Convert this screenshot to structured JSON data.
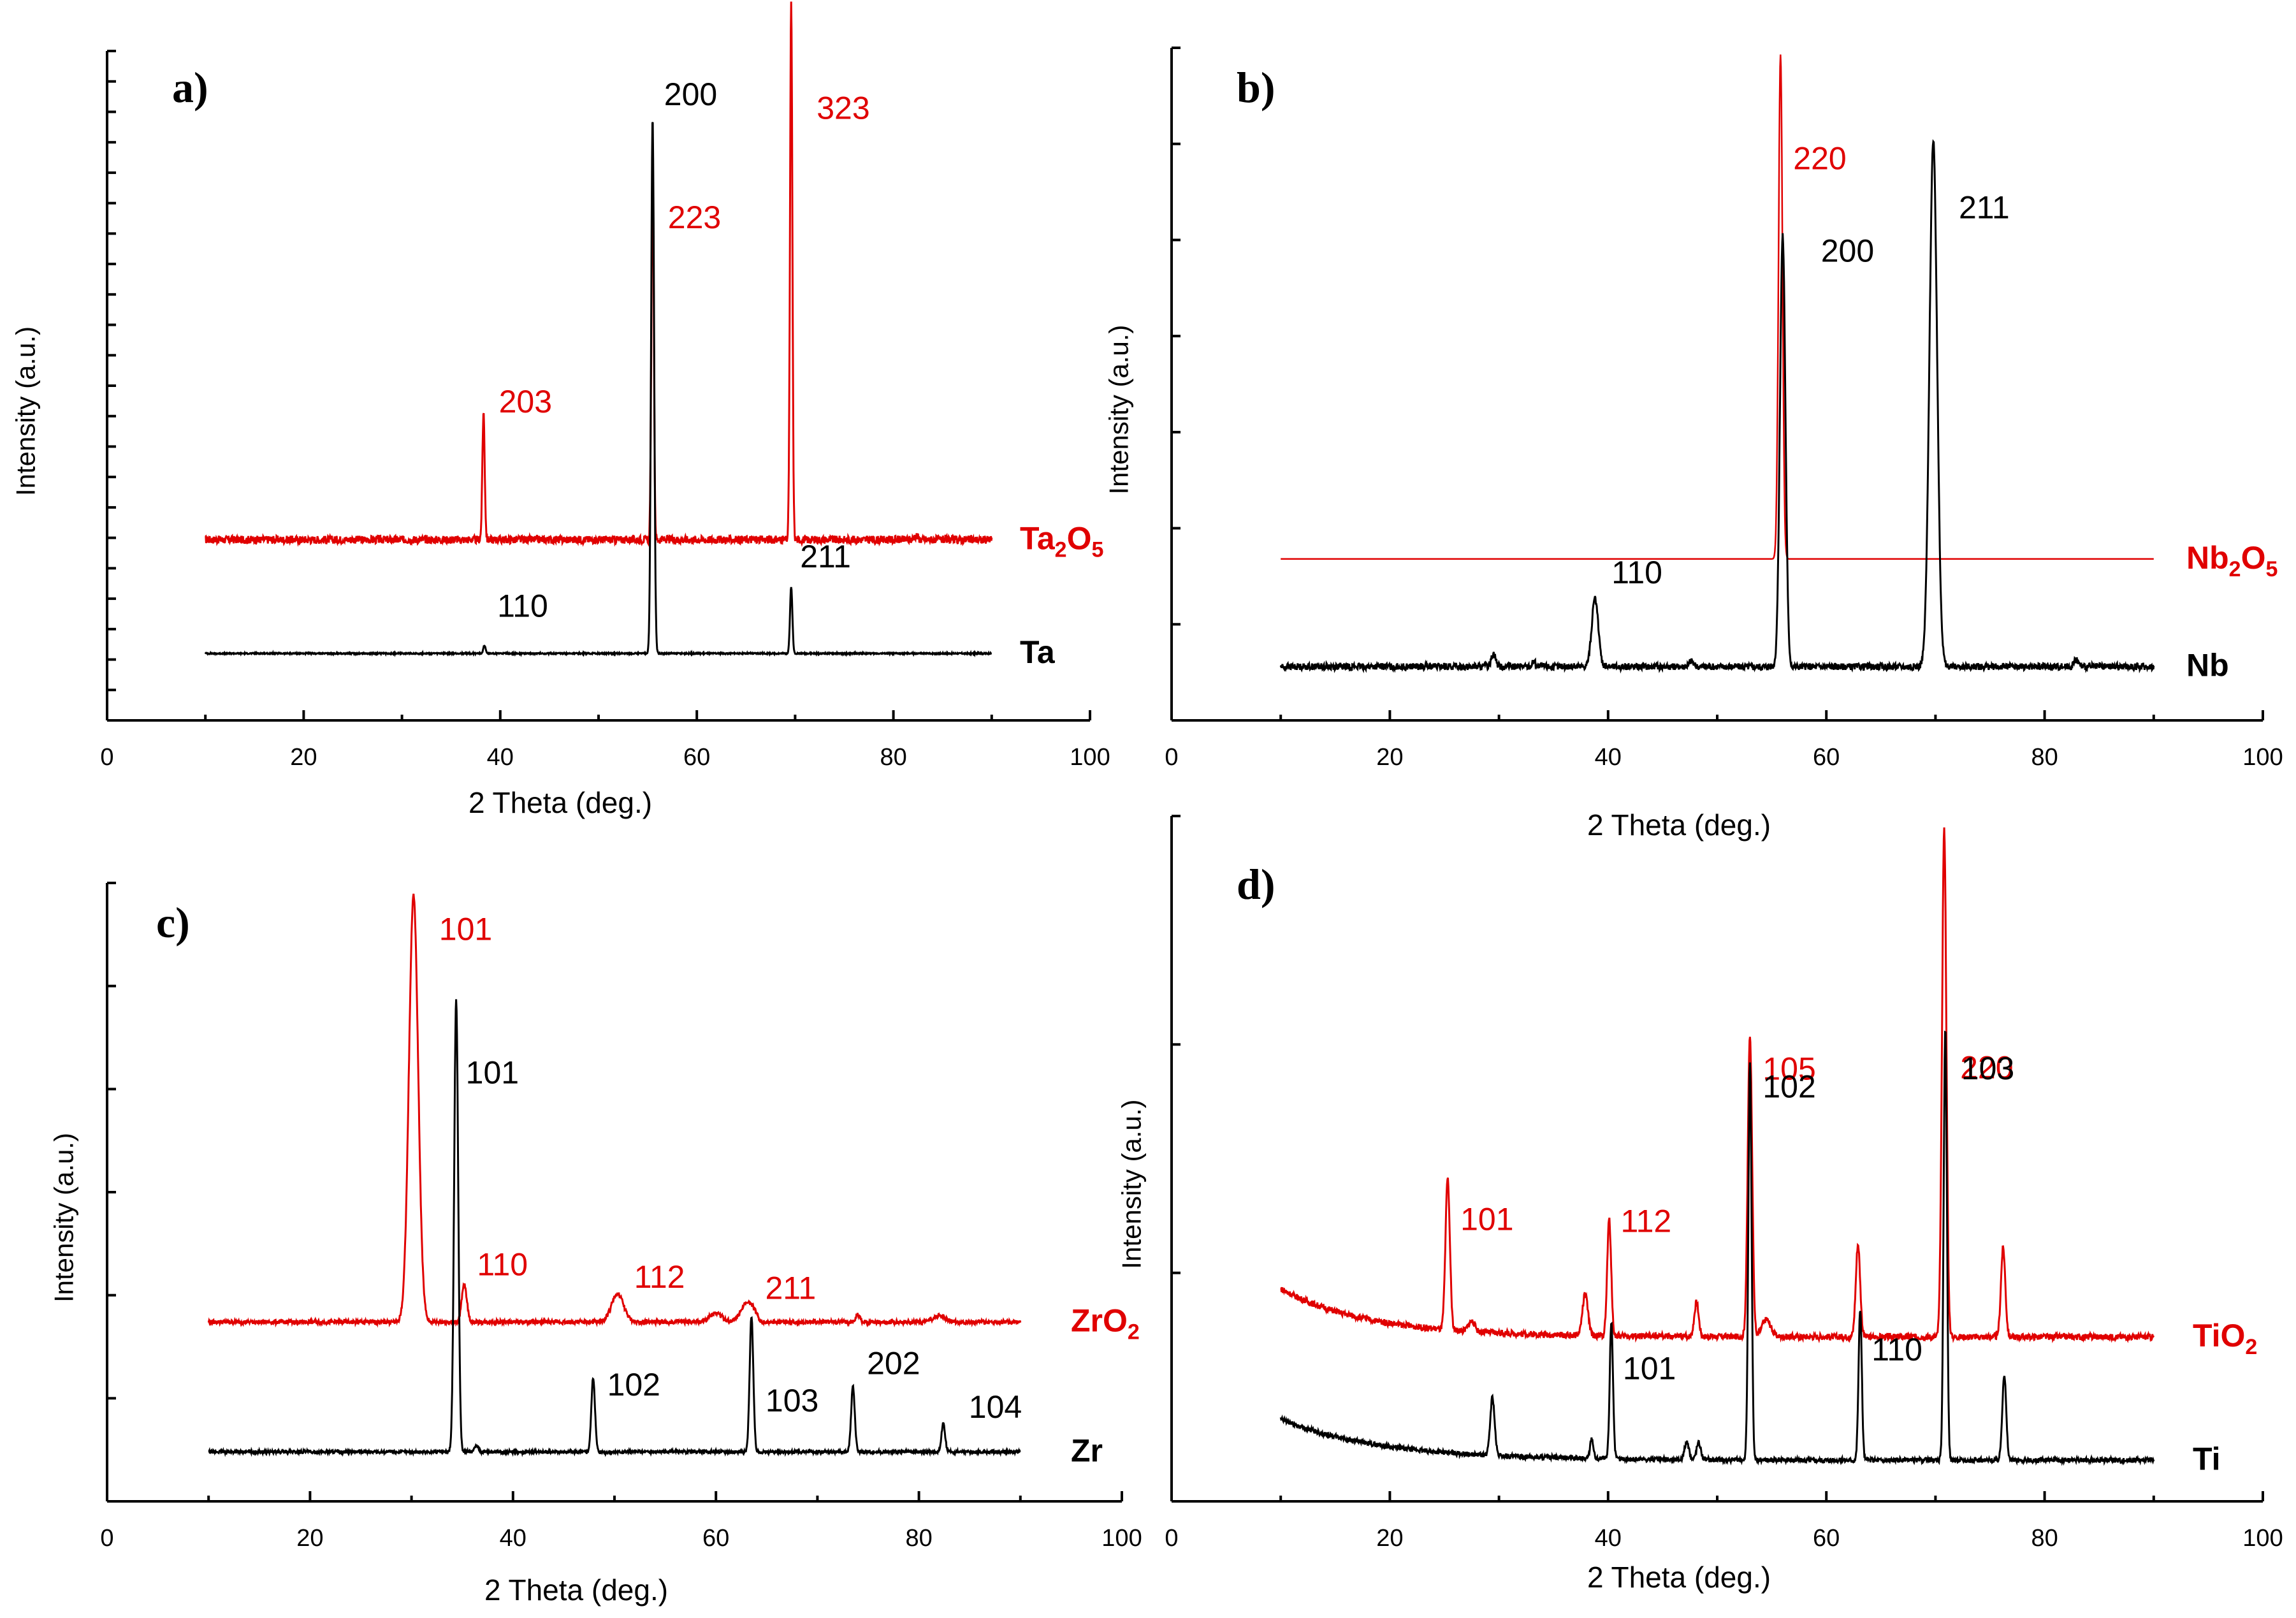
{
  "chart_data": [
    {
      "type": "line",
      "panel": "a",
      "panel_label": "a)",
      "xlabel": "2 Theta (deg.)",
      "ylabel": "Intensity (a.u.)",
      "xlim": [
        0,
        100
      ],
      "xticks": [
        0,
        20,
        40,
        60,
        80,
        100
      ],
      "ylim": [
        0,
        100
      ],
      "series": [
        {
          "name": "Ta2O5",
          "label_main": "Ta",
          "label_sub": "2",
          "label_main2": "O",
          "label_sub2": "5",
          "color": "#e00000",
          "baseline": 27,
          "noise": 0.6,
          "peaks": [
            {
              "x": 38.3,
              "h": 19,
              "w": 0.12
            },
            {
              "x": 55.5,
              "h": 57,
              "w": 0.12
            },
            {
              "x": 69.6,
              "h": 80,
              "w": 0.12
            },
            {
              "x": 82.3,
              "h": 0.6,
              "w": 0.2
            }
          ],
          "peak_labels": [
            {
              "text": "203",
              "x": 38.3
            },
            {
              "text": "223",
              "x": 55.5
            },
            {
              "text": "323",
              "x": 69.6
            }
          ]
        },
        {
          "name": "Ta",
          "label_main": "Ta",
          "color": "#000000",
          "baseline": 10,
          "noise": 0.1,
          "peaks": [
            {
              "x": 38.4,
              "h": 1.2,
              "w": 0.12
            },
            {
              "x": 55.5,
              "h": 80,
              "w": 0.15
            },
            {
              "x": 69.6,
              "h": 10,
              "w": 0.12
            }
          ],
          "peak_labels": [
            {
              "text": "110",
              "x": 38.4
            },
            {
              "text": "200",
              "x": 55.5
            },
            {
              "text": "211",
              "x": 69.6
            }
          ]
        }
      ]
    },
    {
      "type": "line",
      "panel": "b",
      "panel_label": "b)",
      "xlabel": "2 Theta (deg.)",
      "ylabel": "Intensity (a.u.)",
      "xlim": [
        0,
        100
      ],
      "xticks": [
        0,
        20,
        40,
        60,
        80,
        100
      ],
      "ylim": [
        0,
        100
      ],
      "series": [
        {
          "name": "Nb2O5",
          "label_main": "Nb",
          "label_sub": "2",
          "label_main2": "O",
          "label_sub2": "5",
          "color": "#e00000",
          "baseline": 24,
          "noise": 0,
          "peaks": [
            {
              "x": 55.8,
              "h": 75,
              "w": 0.18
            }
          ],
          "peak_labels": [
            {
              "text": "220",
              "x": 55.8
            }
          ]
        },
        {
          "name": "Nb",
          "label_main": "Nb",
          "color": "#000000",
          "baseline": 8,
          "noise": 0.5,
          "peaks": [
            {
              "x": 29.5,
              "h": 2,
              "w": 0.2
            },
            {
              "x": 33.2,
              "h": 0.8,
              "w": 0.15
            },
            {
              "x": 38.8,
              "h": 10,
              "w": 0.3
            },
            {
              "x": 47.6,
              "h": 0.8,
              "w": 0.2
            },
            {
              "x": 56.0,
              "h": 64,
              "w": 0.25
            },
            {
              "x": 69.8,
              "h": 78,
              "w": 0.35
            },
            {
              "x": 82.9,
              "h": 1,
              "w": 0.2
            }
          ],
          "peak_labels": [
            {
              "text": "110",
              "x": 38.8
            },
            {
              "text": "200",
              "x": 56.0
            },
            {
              "text": "211",
              "x": 69.8
            }
          ]
        }
      ]
    },
    {
      "type": "line",
      "panel": "c",
      "panel_label": "c)",
      "xlabel": "2 Theta (deg.)",
      "ylabel": "Intensity (a.u.)",
      "xlim": [
        0,
        100
      ],
      "xticks": [
        0,
        20,
        40,
        60,
        80,
        100
      ],
      "ylim": [
        0,
        100
      ],
      "series": [
        {
          "name": "ZrO2",
          "label_main": "ZrO",
          "label_sub": "2",
          "color": "#e00000",
          "baseline": 29,
          "noise": 0.35,
          "peaks": [
            {
              "x": 30.2,
              "h": 69,
              "w": 0.45
            },
            {
              "x": 35.2,
              "h": 6,
              "w": 0.25
            },
            {
              "x": 50.3,
              "h": 4.5,
              "w": 0.6
            },
            {
              "x": 60.0,
              "h": 1.5,
              "w": 0.6
            },
            {
              "x": 62.8,
              "h": 2.5,
              "w": 0.5
            },
            {
              "x": 63.6,
              "h": 2.0,
              "w": 0.4
            },
            {
              "x": 74.0,
              "h": 1.2,
              "w": 0.2
            },
            {
              "x": 82.0,
              "h": 1.0,
              "w": 0.6
            }
          ],
          "peak_labels": [
            {
              "text": "101",
              "x": 30.2
            },
            {
              "text": "110",
              "x": 35.2
            },
            {
              "text": "112",
              "x": 50.3
            },
            {
              "text": "211",
              "x": 63.6
            }
          ]
        },
        {
          "name": "Zr",
          "label_main": "Zr",
          "color": "#000000",
          "baseline": 8,
          "noise": 0.25,
          "peaks": [
            {
              "x": 34.4,
              "h": 73,
              "w": 0.2
            },
            {
              "x": 36.4,
              "h": 1.0,
              "w": 0.2
            },
            {
              "x": 47.9,
              "h": 12,
              "w": 0.18
            },
            {
              "x": 63.5,
              "h": 22,
              "w": 0.18
            },
            {
              "x": 73.5,
              "h": 10.5,
              "w": 0.18
            },
            {
              "x": 82.4,
              "h": 4.5,
              "w": 0.18
            }
          ],
          "peak_labels": [
            {
              "text": "101",
              "x": 34.4
            },
            {
              "text": "102",
              "x": 47.9
            },
            {
              "text": "103",
              "x": 63.5
            },
            {
              "text": "202",
              "x": 73.5
            },
            {
              "text": "104",
              "x": 82.4
            }
          ]
        }
      ]
    },
    {
      "type": "line",
      "panel": "d",
      "panel_label": "d)",
      "xlabel": "2 Theta (deg.)",
      "ylabel": "Intensity (a.u.)",
      "xlim": [
        0,
        100
      ],
      "xticks": [
        0,
        20,
        40,
        60,
        80,
        100
      ],
      "ylim": [
        0,
        100
      ],
      "series": [
        {
          "name": "TiO2",
          "label_main": "TiO",
          "label_sub": "2",
          "color": "#e00000",
          "baseline": 24,
          "noise": 0.45,
          "slope_start": 7,
          "slope_decay": 8,
          "peaks": [
            {
              "x": 25.3,
              "h": 22,
              "w": 0.2
            },
            {
              "x": 27.5,
              "h": 1.5,
              "w": 0.3
            },
            {
              "x": 37.9,
              "h": 6,
              "w": 0.25
            },
            {
              "x": 40.1,
              "h": 17,
              "w": 0.18
            },
            {
              "x": 48.1,
              "h": 5,
              "w": 0.2
            },
            {
              "x": 53.0,
              "h": 44,
              "w": 0.2
            },
            {
              "x": 54.5,
              "h": 2.5,
              "w": 0.4
            },
            {
              "x": 62.9,
              "h": 13.5,
              "w": 0.2
            },
            {
              "x": 70.8,
              "h": 74,
              "w": 0.2
            },
            {
              "x": 76.2,
              "h": 13,
              "w": 0.2
            }
          ],
          "peak_labels": [
            {
              "text": "101",
              "x": 25.3
            },
            {
              "text": "112",
              "x": 40.1
            },
            {
              "text": "105",
              "x": 53.0
            },
            {
              "text": "220",
              "x": 70.8
            }
          ]
        },
        {
          "name": "Ti",
          "label_main": "Ti",
          "color": "#000000",
          "baseline": 6,
          "noise": 0.35,
          "slope_start": 6,
          "slope_decay": 9,
          "peaks": [
            {
              "x": 29.4,
              "h": 8.5,
              "w": 0.2
            },
            {
              "x": 38.5,
              "h": 3,
              "w": 0.15
            },
            {
              "x": 40.3,
              "h": 20,
              "w": 0.15
            },
            {
              "x": 47.2,
              "h": 2.5,
              "w": 0.2
            },
            {
              "x": 48.3,
              "h": 2.5,
              "w": 0.2
            },
            {
              "x": 53.0,
              "h": 58,
              "w": 0.15
            },
            {
              "x": 63.1,
              "h": 22,
              "w": 0.15
            },
            {
              "x": 70.9,
              "h": 63,
              "w": 0.15
            },
            {
              "x": 76.3,
              "h": 12.5,
              "w": 0.18
            }
          ],
          "peak_labels": [
            {
              "text": "101",
              "x": 40.3
            },
            {
              "text": "102",
              "x": 53.0
            },
            {
              "text": "110",
              "x": 63.1
            },
            {
              "text": "103",
              "x": 70.9
            }
          ]
        }
      ]
    }
  ]
}
